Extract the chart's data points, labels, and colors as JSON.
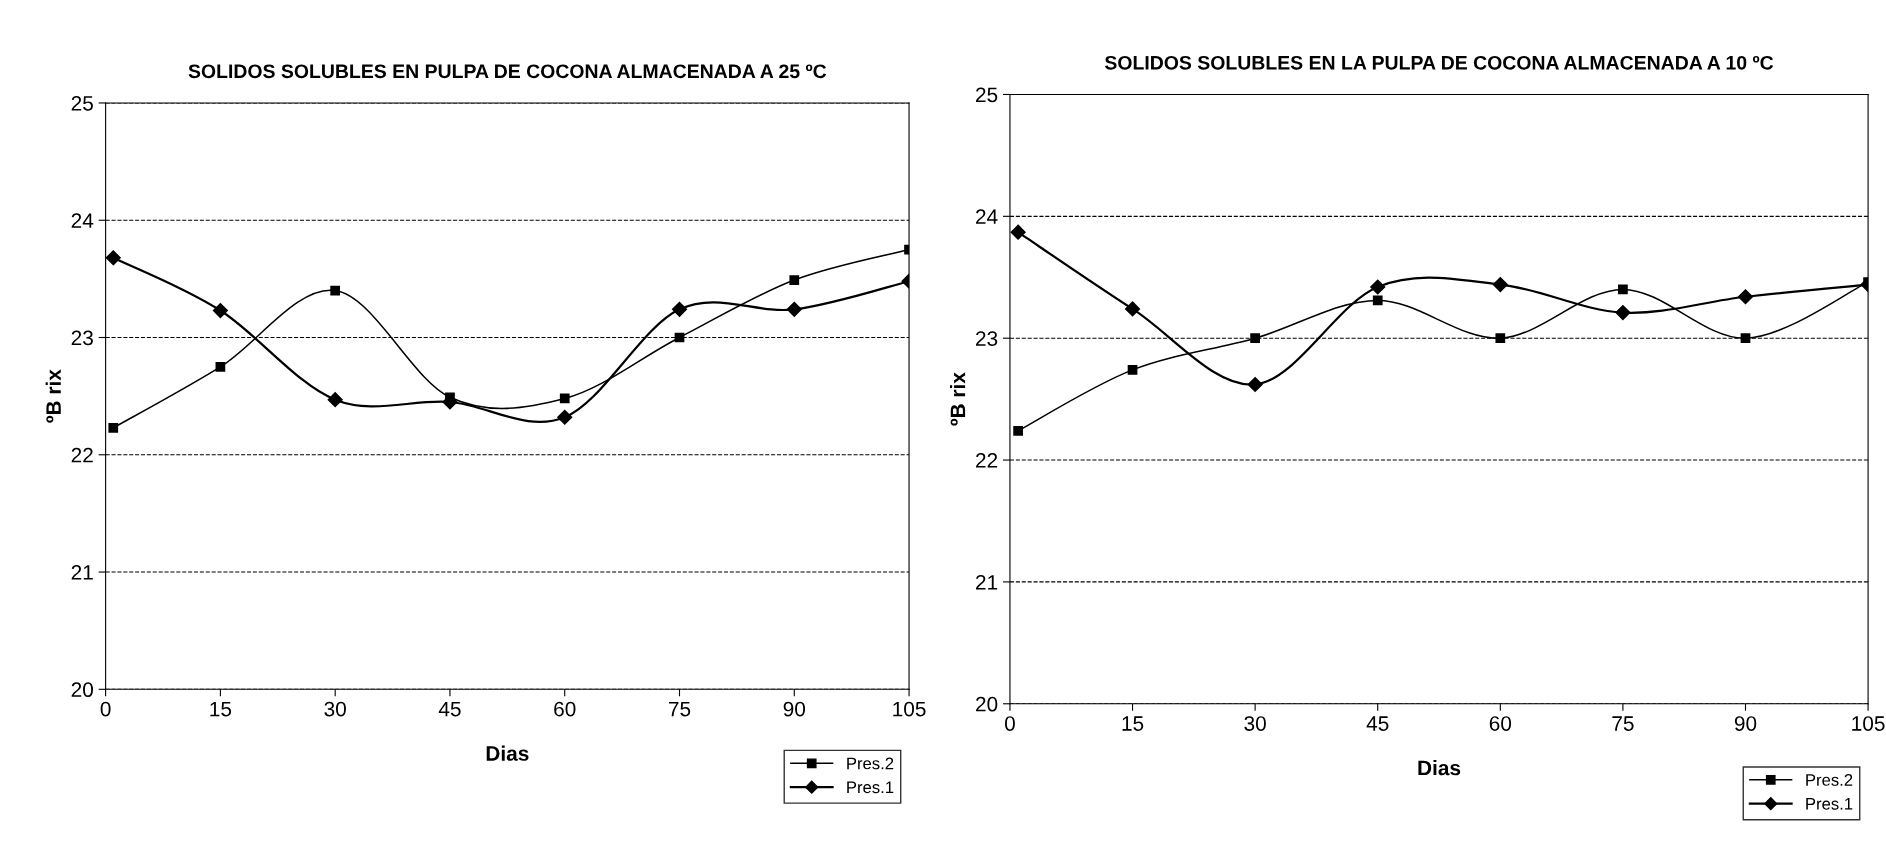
{
  "chart_data": [
    {
      "type": "line",
      "title": "SOLIDOS SOLUBLES EN PULPA DE COCONA ALMACENADA A 25 ºC",
      "xlabel": "Dias",
      "ylabel": "ºB rix",
      "x": [
        1,
        15,
        30,
        45,
        60,
        75,
        90,
        105
      ],
      "xlim": [
        0,
        105
      ],
      "xticks": [
        0,
        15,
        30,
        45,
        60,
        75,
        90,
        105
      ],
      "ylim": [
        20,
        25
      ],
      "yticks": [
        20,
        21,
        22,
        23,
        24,
        25
      ],
      "grid": "y",
      "legend": "bottom right",
      "line_style": "solid",
      "series": [
        {
          "name": "Pres.2",
          "color": "#000000",
          "marker": "square",
          "values": [
            22.23,
            22.75,
            23.4,
            22.49,
            22.48,
            23.0,
            23.49,
            23.75
          ]
        },
        {
          "name": "Pres.1",
          "color": "#000000",
          "marker": "diamond",
          "values": [
            23.68,
            23.23,
            22.47,
            22.45,
            22.32,
            23.24,
            23.24,
            23.48
          ]
        }
      ]
    },
    {
      "type": "line",
      "title": "SOLIDOS SOLUBLES EN LA PULPA DE COCONA ALMACENADA A 10 ºC",
      "xlabel": "Dias",
      "ylabel": "ºB rix",
      "x": [
        1,
        15,
        30,
        45,
        60,
        75,
        90,
        105
      ],
      "xlim": [
        0,
        105
      ],
      "xticks": [
        0,
        15,
        30,
        45,
        60,
        75,
        90,
        105
      ],
      "ylim": [
        20,
        25
      ],
      "yticks": [
        20,
        21,
        22,
        23,
        24,
        25
      ],
      "grid": "y",
      "legend": "bottom right",
      "line_style": "solid",
      "series": [
        {
          "name": "Pres.2",
          "color": "#000000",
          "marker": "square",
          "values": [
            22.24,
            22.74,
            23.0,
            23.31,
            23.0,
            23.4,
            23.0,
            23.46
          ]
        },
        {
          "name": "Pres.1",
          "color": "#000000",
          "marker": "diamond",
          "values": [
            23.87,
            23.24,
            22.62,
            23.42,
            23.44,
            23.21,
            23.34,
            23.44
          ]
        }
      ]
    }
  ]
}
